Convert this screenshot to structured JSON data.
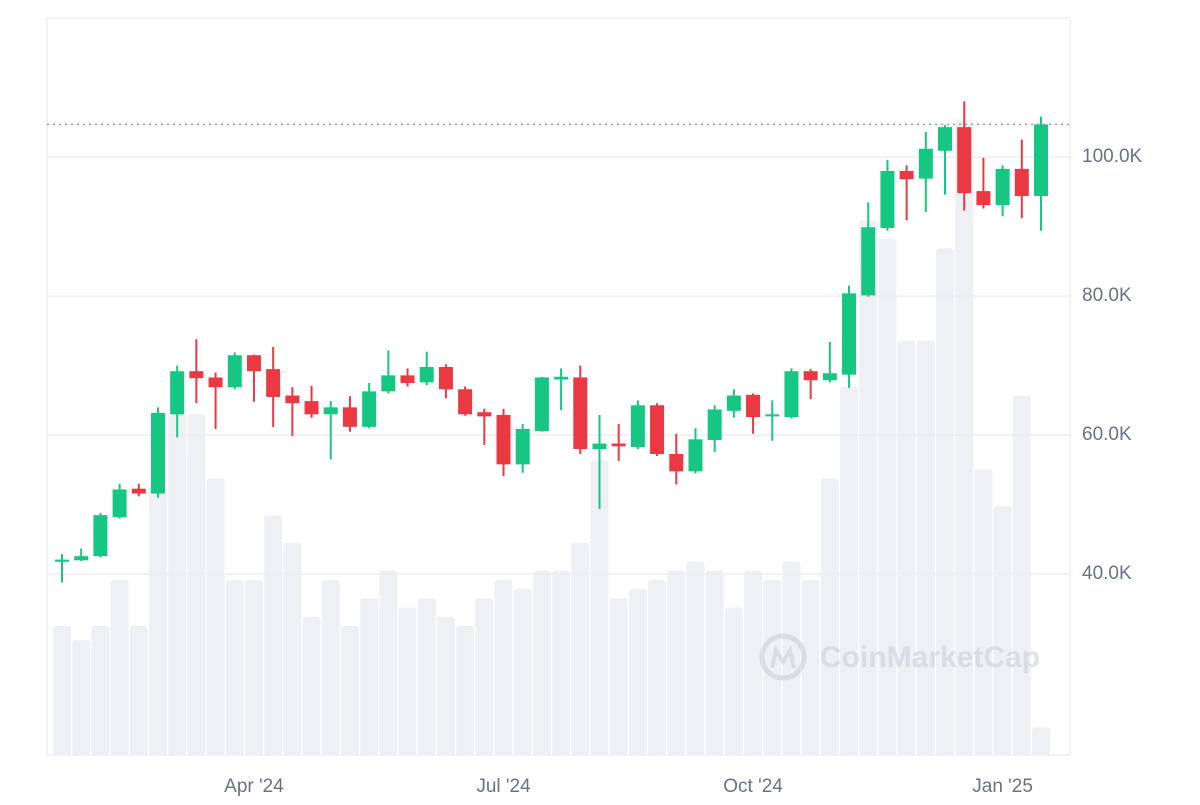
{
  "chart_data": {
    "type": "candlestick",
    "categories": [
      null,
      null,
      null,
      null,
      null,
      null,
      null,
      null,
      null,
      null,
      "Apr '24",
      null,
      null,
      null,
      null,
      null,
      null,
      null,
      null,
      null,
      null,
      null,
      null,
      "Jul '24",
      null,
      null,
      null,
      null,
      null,
      null,
      null,
      null,
      null,
      null,
      null,
      null,
      "Oct '24",
      null,
      null,
      null,
      null,
      null,
      null,
      null,
      null,
      null,
      null,
      null,
      null,
      "Jan '25",
      null,
      null
    ],
    "open": [
      41800,
      42000,
      42600,
      48200,
      52300,
      51600,
      63000,
      69200,
      68300,
      66900,
      71500,
      69500,
      65700,
      64900,
      63000,
      64000,
      61200,
      66300,
      68600,
      67600,
      69800,
      66600,
      63300,
      62900,
      55800,
      60600,
      68000,
      68300,
      58000,
      58800,
      58300,
      64300,
      57300,
      54800,
      59300,
      63500,
      65800,
      62700,
      62600,
      69200,
      67900,
      68700,
      80100,
      89800,
      98000,
      96900,
      100900,
      104300,
      95100,
      93100,
      98300,
      94400
    ],
    "high": [
      42900,
      43700,
      48800,
      53000,
      53000,
      64000,
      70000,
      73800,
      69000,
      71900,
      71600,
      72700,
      66900,
      67100,
      64900,
      65600,
      67500,
      72200,
      69600,
      72000,
      70200,
      67000,
      63800,
      63800,
      61600,
      68400,
      69600,
      70000,
      62900,
      61600,
      65000,
      64600,
      60200,
      61000,
      64300,
      66600,
      66000,
      65000,
      69600,
      69500,
      73400,
      81500,
      93500,
      99600,
      98800,
      103600,
      104600,
      108000,
      99900,
      98800,
      102500,
      105800
    ],
    "low": [
      38800,
      41900,
      42400,
      48000,
      51200,
      51000,
      59700,
      64600,
      60900,
      66600,
      64800,
      61200,
      59900,
      62500,
      56500,
      60500,
      61000,
      66000,
      67000,
      67200,
      65300,
      62800,
      58600,
      54100,
      54600,
      60500,
      63600,
      57300,
      49400,
      56300,
      58000,
      57000,
      52900,
      54500,
      57600,
      62500,
      60200,
      59200,
      62400,
      65200,
      67600,
      66800,
      79900,
      89400,
      90900,
      92100,
      94600,
      92300,
      92600,
      91500,
      91200,
      89400
    ],
    "close": [
      42100,
      42600,
      48500,
      52200,
      51600,
      63200,
      69200,
      68200,
      66900,
      71500,
      69200,
      65500,
      64600,
      63000,
      64000,
      61200,
      66300,
      68600,
      67500,
      69800,
      66600,
      63000,
      62700,
      55800,
      60900,
      68300,
      68400,
      58000,
      58800,
      58400,
      64300,
      57300,
      54800,
      59400,
      63700,
      65700,
      62600,
      63000,
      69200,
      67900,
      68900,
      80400,
      89900,
      98000,
      96800,
      101200,
      104300,
      94800,
      93100,
      98300,
      94400,
      104700
    ],
    "volume": [
      28,
      25,
      28,
      38,
      28,
      58,
      74,
      74,
      60,
      38,
      38,
      52,
      46,
      30,
      38,
      28,
      34,
      40,
      32,
      34,
      30,
      28,
      34,
      38,
      36,
      40,
      40,
      46,
      64,
      34,
      36,
      38,
      40,
      42,
      40,
      32,
      40,
      38,
      42,
      38,
      60,
      80,
      116,
      112,
      90,
      90,
      110,
      138,
      62,
      54,
      78,
      6
    ],
    "volume_ylim": [
      0,
      160
    ],
    "up_color": "#16c784",
    "down_color": "#ea3943",
    "volume_color": "#eef0f3",
    "ylim": [
      14000,
      120000
    ],
    "yticks": [
      {
        "value": 40000,
        "label": "40.0K"
      },
      {
        "value": 60000,
        "label": "60.0K"
      },
      {
        "value": 80000,
        "label": "80.0K"
      },
      {
        "value": 100000,
        "label": "100.0K"
      }
    ],
    "grid": true,
    "watermark": "CoinMarketCap"
  }
}
